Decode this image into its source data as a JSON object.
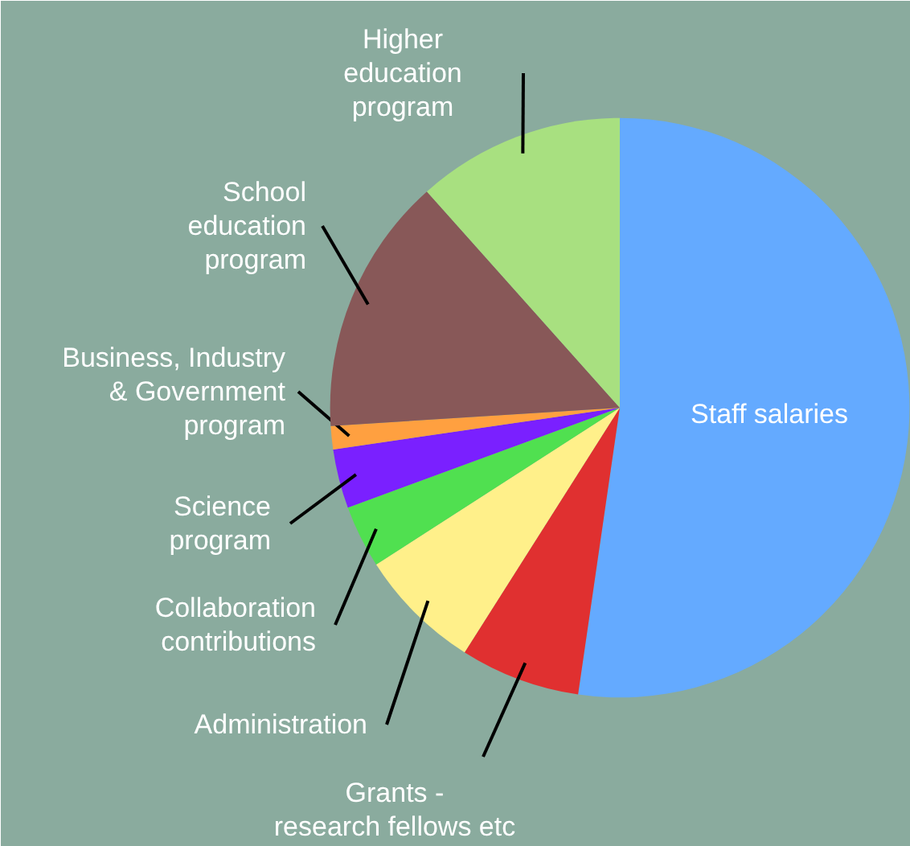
{
  "chart_data": {
    "type": "pie",
    "categories": [
      "Staff salaries",
      "Grants -\nresearch fellows etc",
      "Administration",
      "Collaboration\ncontributions",
      "Science\nprogram",
      "Business, Industry\n& Government\nprogram",
      "School\neducation\nprogram",
      "Higher\neducation\nprogram"
    ],
    "values": [
      52.3,
      6.7,
      6.9,
      3.5,
      3.3,
      1.3,
      14.4,
      11.6
    ],
    "colors": [
      "#64aaff",
      "#e03030",
      "#fff08a",
      "#50e050",
      "#7a20ff",
      "#ffa040",
      "#885858",
      "#a8e080"
    ]
  }
}
